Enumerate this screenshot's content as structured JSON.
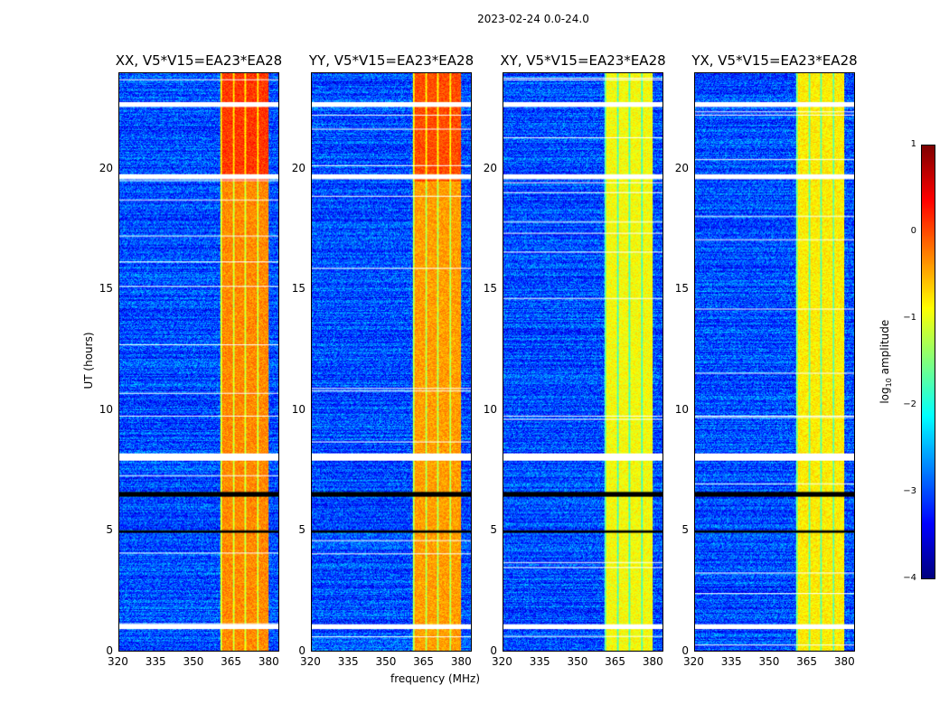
{
  "suptitle": "2023-02-24 0.0-24.0",
  "xlabel": "frequency (MHz)",
  "ylabel": "UT (hours)",
  "colorbar": {
    "label_prefix": "log",
    "label_sub": "10",
    "label_suffix": " amplitude",
    "ticks": [
      "1",
      "0",
      "−1",
      "−2",
      "−3",
      "−4"
    ],
    "vmin": -4,
    "vmax": 1,
    "colormap": "jet"
  },
  "chart_data": {
    "type": "heatmap",
    "title": "2023-02-24 0.0-24.0",
    "xlabel": "frequency (MHz)",
    "ylabel": "UT (hours)",
    "xlim": [
      320,
      384
    ],
    "ylim": [
      0,
      24
    ],
    "xticks": [
      "320",
      "335",
      "350",
      "365",
      "380"
    ],
    "yticks": [
      "0",
      "5",
      "10",
      "15",
      "20"
    ],
    "panels": [
      {
        "title": "XX, V5*V15=EA23*EA28",
        "band_level": -0.3
      },
      {
        "title": "YY, V5*V15=EA23*EA28",
        "band_level": -0.4
      },
      {
        "title": "XY, V5*V15=EA23*EA28",
        "band_level": -0.9
      },
      {
        "title": "YX, V5*V15=EA23*EA28",
        "band_level": -0.8
      }
    ],
    "rfi_band_mhz": [
      360.5,
      380
    ],
    "background_level": -3.0,
    "flagged_ut_hours": [
      [
        22.6,
        22.8
      ],
      [
        19.6,
        19.8
      ],
      [
        7.9,
        8.2
      ],
      [
        0.9,
        1.1
      ]
    ],
    "dark_ut_hours": [
      [
        6.4,
        6.6
      ],
      [
        4.9,
        5.0
      ]
    ]
  }
}
